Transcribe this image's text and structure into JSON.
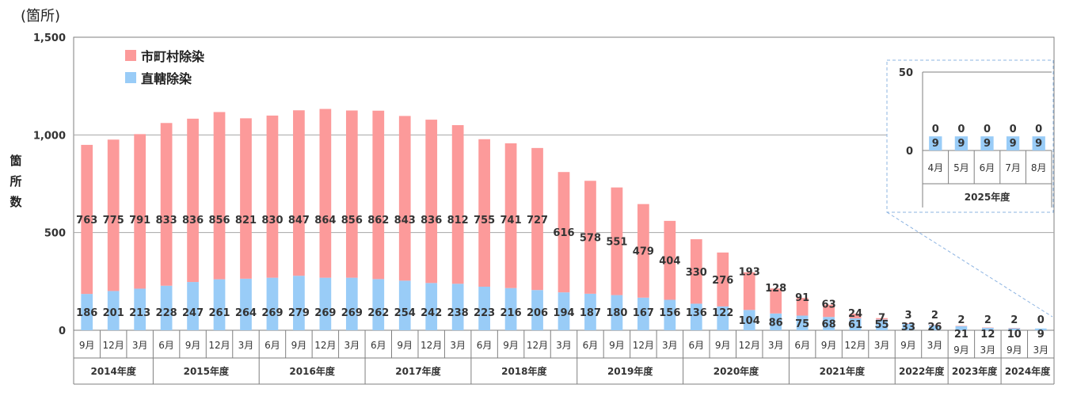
{
  "unit_label": "(箇所)",
  "y_axis_title": [
    "箇",
    "所",
    "数"
  ],
  "colors": {
    "municipal": "#FC9A9A",
    "direct": "#99CCF7",
    "axis": "#7F7F7F",
    "grid": "#A6A6A6",
    "inset_border": "#8DB4E2"
  },
  "legend": {
    "municipal": "市町村除染",
    "direct": "直轄除染"
  },
  "chart_data": {
    "type": "bar",
    "stacked": true,
    "ylim": [
      0,
      1500
    ],
    "yticks": [
      "0",
      "500",
      "1,000",
      "1,500"
    ],
    "ytick_values": [
      0,
      500,
      1000,
      1500
    ],
    "grid": true,
    "legend_position": "top-left",
    "months": [
      "9月",
      "12月",
      "3月",
      "6月",
      "9月",
      "12月",
      "3月",
      "6月",
      "9月",
      "12月",
      "3月",
      "6月",
      "9月",
      "12月",
      "3月",
      "6月",
      "9月",
      "12月",
      "3月",
      "6月",
      "9月",
      "12月",
      "3月",
      "6月",
      "9月",
      "12月",
      "3月",
      "6月",
      "9月",
      "12月",
      "3月",
      "9月",
      "3月",
      "9月",
      "3月",
      "9月",
      "3月"
    ],
    "years": [
      {
        "label": "2014年度",
        "count": 3
      },
      {
        "label": "2015年度",
        "count": 4
      },
      {
        "label": "2016年度",
        "count": 4
      },
      {
        "label": "2017年度",
        "count": 4
      },
      {
        "label": "2018年度",
        "count": 4
      },
      {
        "label": "2019年度",
        "count": 4
      },
      {
        "label": "2020年度",
        "count": 4
      },
      {
        "label": "2021年度",
        "count": 4
      },
      {
        "label": "2022年度",
        "count": 2
      },
      {
        "label": "2023年度",
        "count": 2
      },
      {
        "label": "2024年度",
        "count": 2
      }
    ],
    "series": [
      {
        "name": "直轄除染",
        "values": [
          186,
          201,
          213,
          228,
          247,
          261,
          264,
          269,
          279,
          269,
          269,
          262,
          254,
          242,
          238,
          223,
          216,
          206,
          194,
          187,
          180,
          167,
          156,
          136,
          122,
          104,
          86,
          75,
          68,
          61,
          55,
          33,
          26,
          21,
          12,
          10,
          9
        ]
      },
      {
        "name": "市町村除染",
        "values": [
          763,
          775,
          791,
          833,
          836,
          856,
          821,
          830,
          847,
          864,
          856,
          862,
          843,
          836,
          812,
          755,
          741,
          727,
          616,
          578,
          551,
          479,
          404,
          330,
          276,
          193,
          128,
          91,
          63,
          24,
          7,
          3,
          2,
          2,
          2,
          2,
          0
        ]
      }
    ],
    "inset": {
      "ylim": [
        0,
        50
      ],
      "yticks": [
        "0",
        "50"
      ],
      "ytick_values": [
        0,
        50
      ],
      "months": [
        "4月",
        "5月",
        "6月",
        "7月",
        "8月"
      ],
      "year_label": "2025年度",
      "direct": [
        9,
        9,
        9,
        9,
        9
      ],
      "municipal": [
        0,
        0,
        0,
        0,
        0
      ]
    }
  }
}
